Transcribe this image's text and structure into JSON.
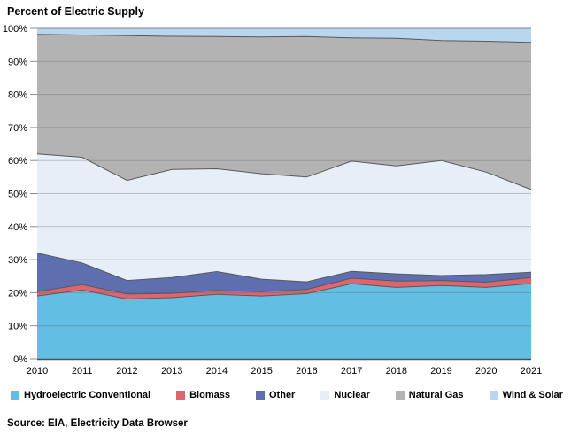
{
  "chart_data": {
    "type": "area",
    "stacked": true,
    "title": "Percent of Electric Supply",
    "x": [
      2010,
      2011,
      2012,
      2013,
      2014,
      2015,
      2016,
      2017,
      2018,
      2019,
      2020,
      2021
    ],
    "x_tick_labels": [
      "2010",
      "2011",
      "2012",
      "2013",
      "2014",
      "2015",
      "2016",
      "2017",
      "2018",
      "2019",
      "2020",
      "2021"
    ],
    "y_axis": {
      "min": 0,
      "max": 100,
      "tick_step": 10,
      "tick_labels": [
        "0%",
        "10%",
        "20%",
        "30%",
        "40%",
        "50%",
        "60%",
        "70%",
        "80%",
        "90%",
        "100%"
      ]
    },
    "units": "percent",
    "grid": true,
    "legend_position": "bottom",
    "series": [
      {
        "name": "Hydroelectric Conventional",
        "color": "#63bee3",
        "values": [
          19.0,
          20.8,
          18.1,
          18.5,
          19.5,
          19.0,
          19.7,
          22.7,
          21.6,
          22.2,
          21.6,
          22.8
        ]
      },
      {
        "name": "Biomass",
        "color": "#dd6570",
        "values": [
          1.3,
          1.7,
          1.5,
          1.3,
          1.2,
          1.3,
          1.3,
          1.7,
          1.9,
          1.5,
          1.6,
          1.8
        ]
      },
      {
        "name": "Other",
        "color": "#5e6fb0",
        "values": [
          11.7,
          6.5,
          4.1,
          4.8,
          5.7,
          3.8,
          2.3,
          2.1,
          2.2,
          1.5,
          2.3,
          1.6
        ]
      },
      {
        "name": "Nuclear",
        "color": "#e6eef8",
        "values": [
          30.0,
          32.0,
          30.3,
          32.7,
          31.1,
          31.9,
          31.7,
          33.3,
          32.7,
          34.8,
          31.0,
          25.0
        ]
      },
      {
        "name": "Natural Gas",
        "color": "#b3b3b4",
        "values": [
          36.2,
          37.0,
          43.8,
          40.3,
          40.0,
          41.4,
          42.5,
          37.3,
          38.6,
          36.3,
          39.6,
          44.6
        ]
      },
      {
        "name": "Wind & Solar",
        "color": "#b9d6ef",
        "values": [
          1.8,
          2.0,
          2.2,
          2.4,
          2.5,
          2.6,
          2.5,
          2.9,
          3.0,
          3.7,
          3.9,
          4.2
        ]
      }
    ],
    "style": {
      "boundary_stroke": "#58595b",
      "top_edge_stroke": "#7d8890",
      "axis_line": "#4d4d4d",
      "gridline": "rgba(90,90,90,0.32)",
      "tick": "#8c8c8c",
      "label_color": "#000000"
    }
  },
  "source_note": "Source: EIA, Electricity Data Browser"
}
